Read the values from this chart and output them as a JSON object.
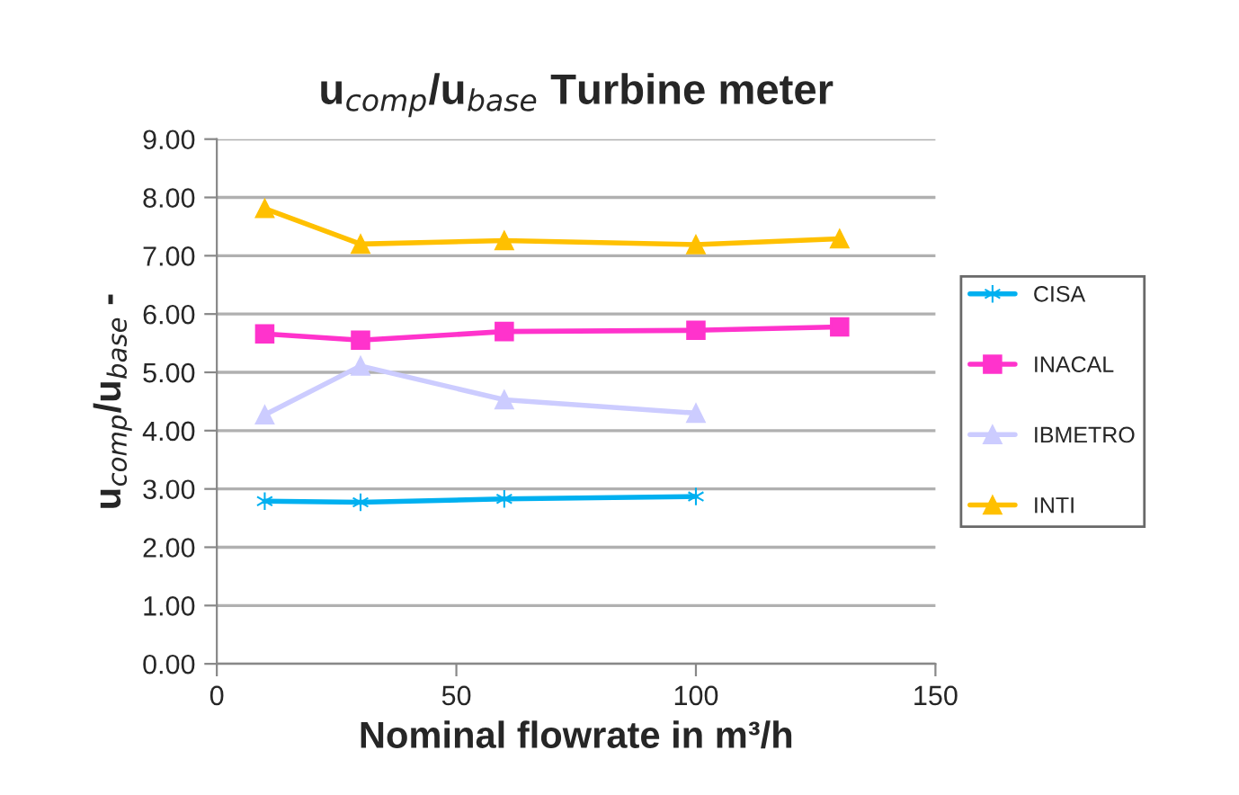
{
  "chart_data": {
    "type": "line",
    "title": "u$_{comp}$/u$_{base}$ Turbine meter",
    "xlabel": "Nominal flowrate in m³/h",
    "ylabel": "u$_{comp}$/u$_{base}$ -",
    "series": [
      {
        "name": "CISA",
        "color": "#00b0f0",
        "marker": "cross",
        "x": [
          10,
          30,
          60,
          100
        ],
        "values": [
          2.79,
          2.77,
          2.83,
          2.87
        ]
      },
      {
        "name": "INACAL",
        "color": "#ff33cc",
        "marker": "square",
        "x": [
          10,
          30,
          60,
          100,
          130
        ],
        "values": [
          5.66,
          5.55,
          5.7,
          5.72,
          5.78
        ]
      },
      {
        "name": "IBMETRO",
        "color": "#ccccff",
        "marker": "triangle",
        "x": [
          10,
          30,
          60,
          100
        ],
        "values": [
          4.27,
          5.11,
          4.53,
          4.3
        ]
      },
      {
        "name": "INTI",
        "color": "#ffc000",
        "marker": "triangle",
        "x": [
          10,
          30,
          60,
          100,
          130
        ],
        "values": [
          7.81,
          7.2,
          7.26,
          7.19,
          7.29
        ]
      }
    ],
    "xlim": [
      0,
      150
    ],
    "xticks": [
      0,
      50,
      100,
      150
    ],
    "ylim": [
      0,
      9
    ],
    "yticks": [
      {
        "value": 0,
        "label": "0.00"
      },
      {
        "value": 1,
        "label": "1.00"
      },
      {
        "value": 2,
        "label": "2.00"
      },
      {
        "value": 3,
        "label": "3.00"
      },
      {
        "value": 4,
        "label": "4.00"
      },
      {
        "value": 5,
        "label": "5.00"
      },
      {
        "value": 6,
        "label": "6.00"
      },
      {
        "value": 7,
        "label": "7.00"
      },
      {
        "value": 8,
        "label": "8.00"
      },
      {
        "value": 9,
        "label": "9.00"
      }
    ],
    "grid": "y",
    "legend": "right"
  }
}
